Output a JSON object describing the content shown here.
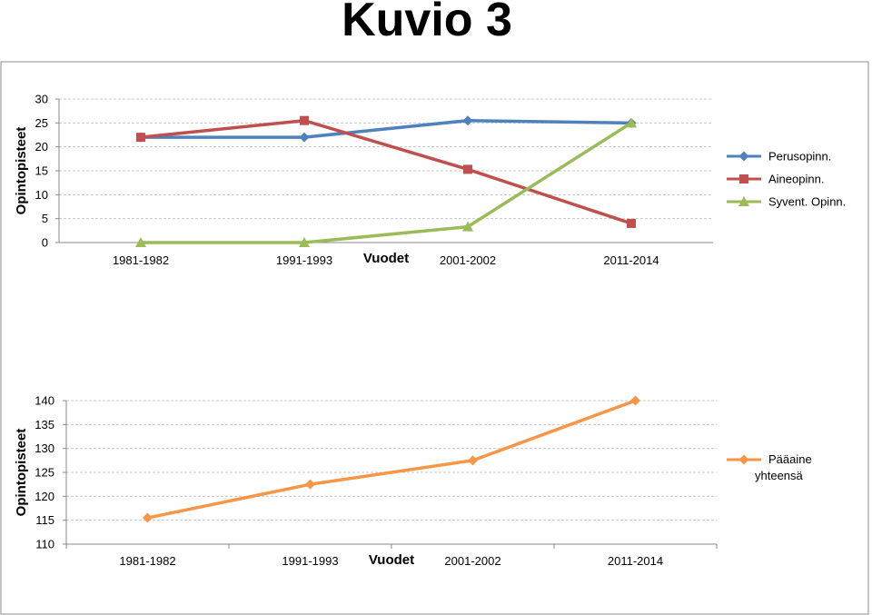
{
  "page": {
    "title": "Kuvio 3"
  },
  "chart_data": [
    {
      "type": "line",
      "title": "",
      "xlabel": "Vuodet",
      "ylabel": "Opintopisteet",
      "categories": [
        "1981-1982",
        "1991-1993",
        "2001-2002",
        "2011-2014"
      ],
      "ylim": [
        0,
        30
      ],
      "yticks": [
        0,
        5,
        10,
        15,
        20,
        25,
        30
      ],
      "grid": true,
      "legend": "right",
      "series": [
        {
          "name": "Perusopinn.",
          "values": [
            22,
            22,
            25.5,
            25
          ],
          "color": "#4F81BD",
          "marker": "diamond"
        },
        {
          "name": "Aineopinn.",
          "values": [
            22,
            25.5,
            15.3,
            4
          ],
          "color": "#C0504D",
          "marker": "square"
        },
        {
          "name": "Syvent. Opinn.",
          "values": [
            0,
            0,
            3.3,
            25
          ],
          "color": "#9BBB59",
          "marker": "triangle"
        }
      ]
    },
    {
      "type": "line",
      "title": "",
      "xlabel": "Vuodet",
      "ylabel": "Opintopisteet",
      "categories": [
        "1981-1982",
        "1991-1993",
        "2001-2002",
        "2011-2014"
      ],
      "ylim": [
        110,
        140
      ],
      "yticks": [
        110,
        115,
        120,
        125,
        130,
        135,
        140
      ],
      "grid": true,
      "legend": "right",
      "series": [
        {
          "name": "Pääaine yhteensä",
          "values": [
            115.5,
            122.5,
            127.5,
            140
          ],
          "color": "#F79646",
          "marker": "diamond"
        }
      ]
    }
  ]
}
